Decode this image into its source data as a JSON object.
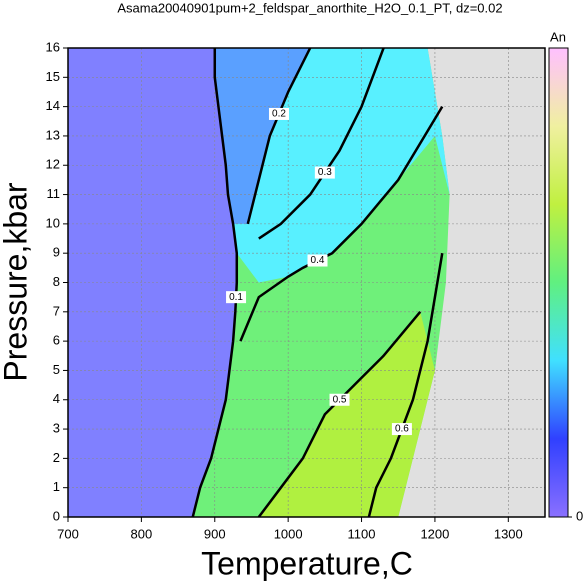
{
  "chart_data": {
    "type": "contour",
    "title": "Asama20040901pum+2_feldspar_anorthite_H2O_0.1_PT, dz=0.02",
    "xlabel": "Temperature,C",
    "ylabel": "Pressure,kbar",
    "xlim": [
      700,
      1350
    ],
    "ylim": [
      0,
      16
    ],
    "xticks": [
      700,
      800,
      900,
      1000,
      1100,
      1200,
      1300
    ],
    "yticks": [
      0,
      1,
      2,
      3,
      4,
      5,
      6,
      7,
      8,
      9,
      10,
      11,
      12,
      13,
      14,
      15,
      16
    ],
    "grid": true,
    "background": "#e0e0e0",
    "regions": [
      {
        "color": "#6ff07a",
        "x": [
          870,
          880,
          895,
          905,
          915,
          920,
          925,
          928,
          930,
          930,
          925,
          918,
          915,
          910,
          905,
          900,
          900,
          1190,
          1210,
          1220,
          1215,
          1200,
          1180,
          1160,
          1150
        ],
        "y": [
          0,
          1,
          2,
          3,
          4,
          5,
          6,
          7,
          8,
          9,
          10,
          11,
          12,
          13,
          14,
          15,
          16,
          16,
          13,
          11,
          8,
          5,
          3,
          1,
          0
        ]
      },
      {
        "color": "#58f0ff",
        "x": [
          930,
          925,
          918,
          915,
          910,
          905,
          900,
          900,
          1190,
          1210,
          1220,
          1200,
          1150,
          1100,
          1060,
          1020,
          1000,
          960
        ],
        "y": [
          9,
          10,
          11,
          12,
          13,
          14,
          15,
          16,
          16,
          13,
          11,
          13,
          11.5,
          10,
          9,
          8.5,
          8.2,
          8
        ]
      },
      {
        "color": "#5aa0ff",
        "x": [
          925,
          918,
          915,
          910,
          905,
          900,
          900,
          1030,
          1000,
          975,
          955,
          945
        ],
        "y": [
          10,
          11,
          12,
          13,
          14,
          15,
          16,
          16,
          14.5,
          13,
          11,
          10
        ]
      },
      {
        "color": "#b0f040",
        "x": [
          1050,
          1090,
          1130,
          1180,
          1200,
          1180,
          1160,
          1150,
          960,
          990,
          1020
        ],
        "y": [
          3.5,
          4.5,
          5.5,
          7,
          5,
          3,
          1,
          0,
          0,
          1,
          2
        ]
      },
      {
        "color": "#8080ff",
        "x": [
          700,
          870,
          880,
          895,
          905,
          915,
          920,
          925,
          928,
          930,
          930,
          925,
          918,
          915,
          910,
          905,
          900,
          900,
          700
        ],
        "y": [
          0,
          0,
          1,
          2,
          3,
          4,
          5,
          6,
          7,
          8,
          9,
          10,
          11,
          12,
          13,
          14,
          15,
          16,
          16
        ]
      }
    ],
    "contours": [
      {
        "level": 0.1,
        "x": [
          870,
          880,
          895,
          905,
          915,
          920,
          925,
          928,
          930,
          930,
          925,
          918,
          915,
          910,
          905,
          900,
          900
        ],
        "y": [
          0,
          1,
          2,
          3,
          4,
          5,
          6,
          7,
          8,
          9,
          10,
          11,
          12,
          13,
          14,
          15,
          16
        ]
      },
      {
        "level": 0.2,
        "x": [
          1030,
          1000,
          975,
          955,
          945
        ],
        "y": [
          16,
          14.5,
          13,
          11,
          10
        ]
      },
      {
        "level": 0.3,
        "x": [
          1130,
          1100,
          1070,
          1030,
          990,
          960
        ],
        "y": [
          16,
          14,
          12.5,
          11,
          10,
          9.5
        ]
      },
      {
        "level": 0.4,
        "x": [
          1210,
          1150,
          1100,
          1060,
          1020,
          1000,
          960,
          935
        ],
        "y": [
          14,
          11.5,
          10,
          9,
          8.5,
          8.2,
          7.5,
          6
        ]
      },
      {
        "level": 0.5,
        "x": [
          1180,
          1130,
          1090,
          1050,
          1020,
          990,
          960
        ],
        "y": [
          7,
          5.5,
          4.5,
          3.5,
          2,
          1,
          0
        ]
      },
      {
        "level": 0.6,
        "x": [
          1210,
          1190,
          1170,
          1140,
          1120,
          1110
        ],
        "y": [
          9,
          6,
          4,
          2,
          1,
          0
        ]
      }
    ],
    "colorbar": {
      "label": "An",
      "ticks": [
        0
      ],
      "colors": [
        "#8a70ff",
        "#3040ff",
        "#40e0ff",
        "#60f080",
        "#c0f040",
        "#f0f0a0",
        "#ffc0ff"
      ]
    }
  }
}
